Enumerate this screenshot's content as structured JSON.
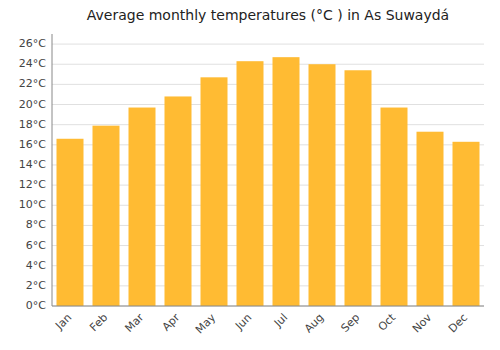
{
  "chart_data": {
    "type": "bar",
    "title": "Average monthly temperatures (°C ) in As Suwaydá",
    "categories": [
      "Jan",
      "Feb",
      "Mar",
      "Apr",
      "May",
      "Jun",
      "Jul",
      "Aug",
      "Sep",
      "Oct",
      "Nov",
      "Dec"
    ],
    "values": [
      16.6,
      17.9,
      19.7,
      20.8,
      22.7,
      24.3,
      24.7,
      24.0,
      23.4,
      19.7,
      17.3,
      16.3
    ],
    "color": "#FFBB33",
    "ylim": [
      0,
      27
    ],
    "yticks": [
      {
        "value": 0,
        "label": "0°C"
      },
      {
        "value": 2,
        "label": "2°C"
      },
      {
        "value": 4,
        "label": "4°C"
      },
      {
        "value": 6,
        "label": "6°C"
      },
      {
        "value": 8,
        "label": "8°C"
      },
      {
        "value": 10,
        "label": "10°C"
      },
      {
        "value": 12,
        "label": "12°C"
      },
      {
        "value": 14,
        "label": "14°C"
      },
      {
        "value": 16,
        "label": "16°C"
      },
      {
        "value": 18,
        "label": "18°C"
      },
      {
        "value": 20,
        "label": "20°C"
      },
      {
        "value": 22,
        "label": "22°C"
      },
      {
        "value": 24,
        "label": "24°C"
      },
      {
        "value": 26,
        "label": "26°C"
      }
    ],
    "grid": true
  }
}
